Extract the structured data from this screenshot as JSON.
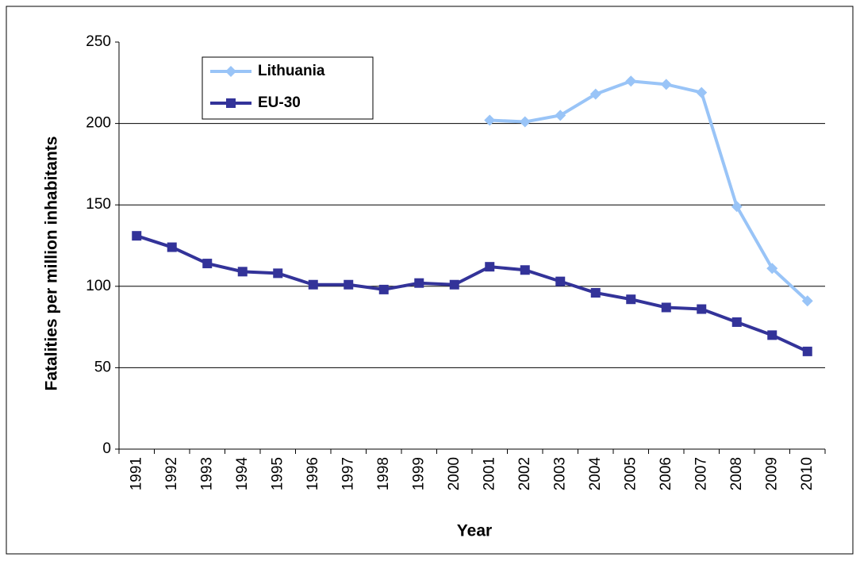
{
  "chart_data": {
    "type": "line",
    "x_label": "Year",
    "y_label": "Fatalities per million inhabitants",
    "categories": [
      "1991",
      "1992",
      "1993",
      "1994",
      "1995",
      "1996",
      "1997",
      "1998",
      "1999",
      "2000",
      "2001",
      "2002",
      "2003",
      "2004",
      "2005",
      "2006",
      "2007",
      "2008",
      "2009",
      "2010"
    ],
    "series": [
      {
        "name": "Lithuania",
        "color": "#99c4f7",
        "marker": "diamond",
        "values": [
          null,
          null,
          null,
          null,
          null,
          null,
          null,
          null,
          null,
          null,
          202,
          201,
          205,
          218,
          226,
          224,
          219,
          149,
          111,
          91
        ]
      },
      {
        "name": "EU-30",
        "color": "#333399",
        "marker": "square",
        "values": [
          131,
          124,
          114,
          109,
          108,
          101,
          101,
          98,
          102,
          101,
          112,
          110,
          103,
          96,
          92,
          87,
          86,
          78,
          70,
          60
        ]
      }
    ],
    "ylim": [
      0,
      250
    ],
    "yticks": [
      0,
      50,
      100,
      150,
      200,
      250
    ],
    "grid": true,
    "legend": "upper left"
  }
}
